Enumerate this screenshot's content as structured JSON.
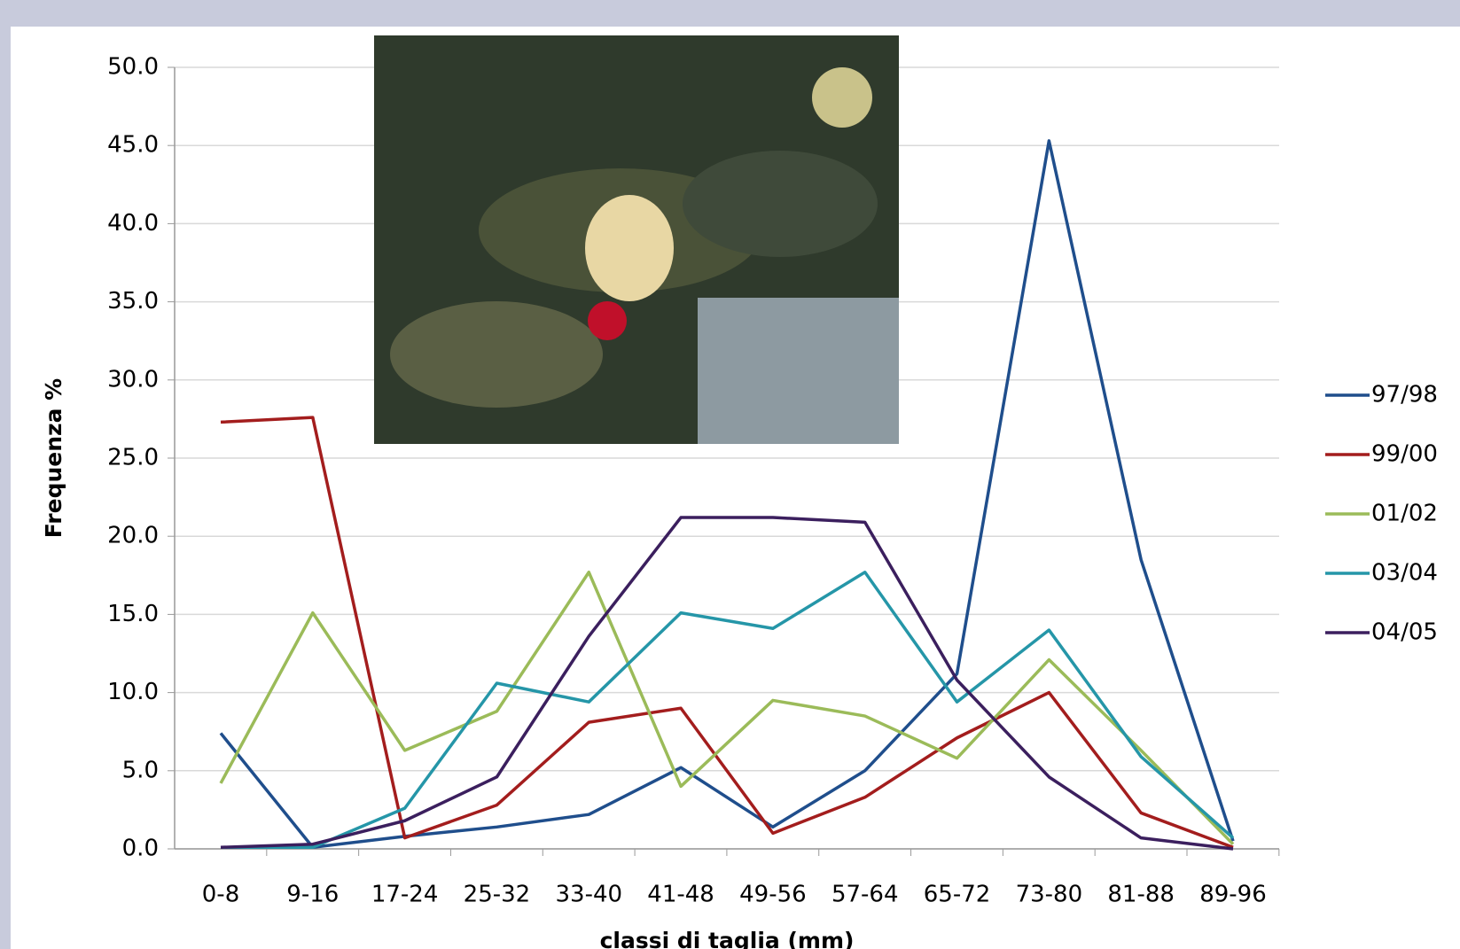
{
  "chart_data": {
    "type": "line",
    "x_label": "classi di taglia (mm)",
    "y_label": "Frequenza %",
    "categories": [
      "0-8",
      "9-16",
      "17-24",
      "25-32",
      "33-40",
      "41-48",
      "49-56",
      "57-64",
      "65-72",
      "73-80",
      "81-88",
      "89-96"
    ],
    "series": [
      {
        "name": "97/98",
        "color": "#1f4e8c",
        "values": [
          7.4,
          0.1,
          0.8,
          1.4,
          2.2,
          5.2,
          1.4,
          5.0,
          11.2,
          45.3,
          18.5,
          0.5
        ]
      },
      {
        "name": "99/00",
        "color": "#a31d1d",
        "values": [
          27.3,
          27.6,
          0.7,
          2.8,
          8.1,
          9.0,
          1.0,
          3.3,
          7.1,
          10.0,
          2.3,
          0.1
        ]
      },
      {
        "name": "01/02",
        "color": "#9bbb59",
        "values": [
          4.2,
          15.1,
          6.3,
          8.8,
          17.7,
          4.0,
          9.5,
          8.5,
          5.8,
          12.1,
          6.3,
          0.3
        ]
      },
      {
        "name": "03/04",
        "color": "#2596a8",
        "values": [
          0.1,
          0.1,
          2.6,
          10.6,
          9.4,
          15.1,
          14.1,
          17.7,
          9.4,
          14.0,
          5.9,
          0.7
        ]
      },
      {
        "name": "04/05",
        "color": "#3b1f5e",
        "values": [
          0.1,
          0.3,
          1.8,
          4.6,
          13.6,
          21.2,
          21.2,
          20.9,
          10.8,
          4.6,
          0.7,
          0.0
        ]
      }
    ],
    "ylim": [
      0,
      50
    ],
    "yticks": [
      {
        "value": 0,
        "label": "0.0"
      },
      {
        "value": 5,
        "label": "5.0"
      },
      {
        "value": 10,
        "label": "10.0"
      },
      {
        "value": 15,
        "label": "15.0"
      },
      {
        "value": 20,
        "label": "20.0"
      },
      {
        "value": 25,
        "label": "25.0"
      },
      {
        "value": 30,
        "label": "30.0"
      },
      {
        "value": 35,
        "label": "35.0"
      },
      {
        "value": 40,
        "label": "40.0"
      },
      {
        "value": 45,
        "label": "45.0"
      },
      {
        "value": 50,
        "label": "50.0"
      }
    ],
    "grid": true,
    "legend": "right"
  }
}
